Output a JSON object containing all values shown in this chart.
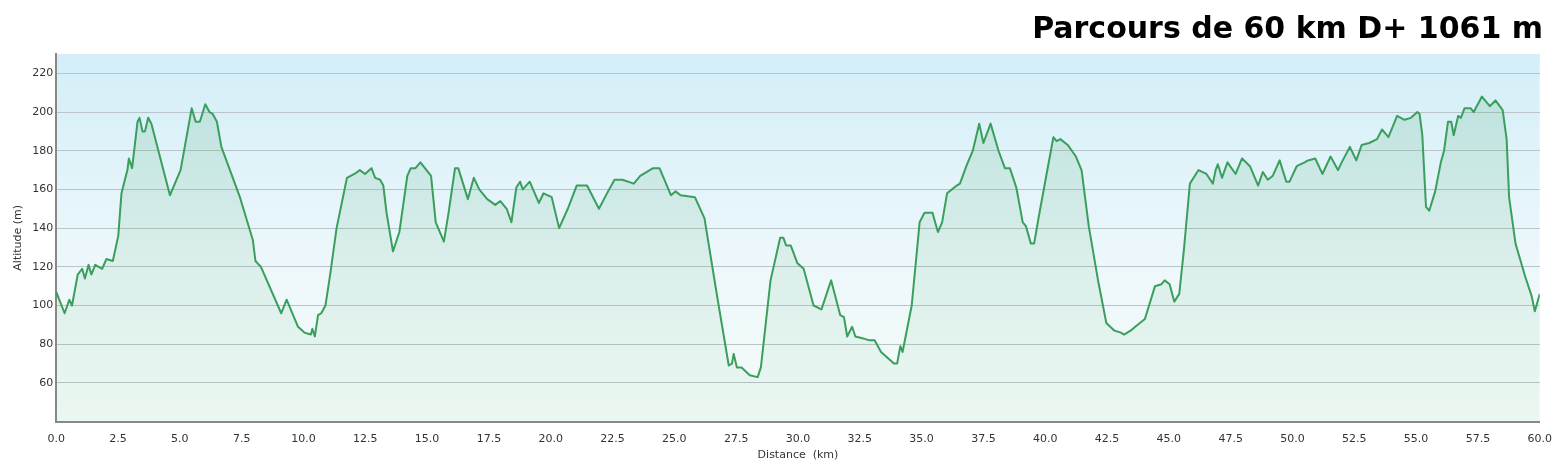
{
  "chart_data": {
    "type": "area",
    "title": "Parcours de 60 km D+ 1061 m",
    "xlabel": "Distance  (km)",
    "ylabel": "Altitude (m)",
    "xlim": [
      0,
      60
    ],
    "ylim": [
      40,
      230
    ],
    "xticks": [
      {
        "value": 0,
        "label": "0.0"
      },
      {
        "value": 2.5,
        "label": "2.5"
      },
      {
        "value": 5,
        "label": "5.0"
      },
      {
        "value": 7.5,
        "label": "7.5"
      },
      {
        "value": 10,
        "label": "10.0"
      },
      {
        "value": 12.5,
        "label": "12.5"
      },
      {
        "value": 15,
        "label": "15.0"
      },
      {
        "value": 17.5,
        "label": "17.5"
      },
      {
        "value": 20,
        "label": "20.0"
      },
      {
        "value": 22.5,
        "label": "22.5"
      },
      {
        "value": 25,
        "label": "25.0"
      },
      {
        "value": 27.5,
        "label": "27.5"
      },
      {
        "value": 30,
        "label": "30.0"
      },
      {
        "value": 32.5,
        "label": "32.5"
      },
      {
        "value": 35,
        "label": "35.0"
      },
      {
        "value": 37.5,
        "label": "37.5"
      },
      {
        "value": 40,
        "label": "40.0"
      },
      {
        "value": 42.5,
        "label": "42.5"
      },
      {
        "value": 45,
        "label": "45.0"
      },
      {
        "value": 47.5,
        "label": "47.5"
      },
      {
        "value": 50,
        "label": "50.0"
      },
      {
        "value": 52.5,
        "label": "52.5"
      },
      {
        "value": 55,
        "label": "55.0"
      },
      {
        "value": 57.5,
        "label": "57.5"
      },
      {
        "value": 60,
        "label": "60.0"
      }
    ],
    "yticks": [
      60,
      80,
      100,
      120,
      140,
      160,
      180,
      200,
      220
    ],
    "grid": "y",
    "legend": false,
    "series": [
      {
        "color": "#3a9e5c",
        "x": [
          0,
          0.34,
          0.53,
          0.64,
          0.87,
          1.05,
          1.16,
          1.31,
          1.42,
          1.58,
          1.86,
          2.03,
          2.29,
          2.51,
          2.64,
          2.88,
          2.94,
          3.07,
          3.29,
          3.37,
          3.49,
          3.59,
          3.72,
          3.85,
          4.6,
          5.03,
          5.48,
          5.64,
          5.81,
          6.03,
          6.2,
          6.33,
          6.5,
          6.68,
          7.43,
          7.95,
          8.06,
          8.28,
          9.1,
          9.32,
          9.78,
          10.04,
          10.3,
          10.36,
          10.46,
          10.59,
          10.72,
          10.89,
          11.08,
          11.34,
          11.76,
          12.06,
          12.28,
          12.49,
          12.75,
          12.9,
          13.1,
          13.23,
          13.36,
          13.62,
          13.88,
          14.2,
          14.34,
          14.53,
          14.73,
          15.16,
          15.35,
          15.68,
          15.87,
          16.13,
          16.26,
          16.65,
          16.89,
          17.11,
          17.43,
          17.76,
          17.96,
          18.22,
          18.41,
          18.61,
          18.76,
          18.87,
          19.15,
          19.52,
          19.71,
          20.04,
          20.34,
          20.69,
          21.05,
          21.47,
          21.95,
          22.32,
          22.58,
          22.9,
          23.36,
          23.62,
          24.14,
          24.4,
          24.86,
          25.05,
          25.25,
          25.83,
          26.22,
          26.74,
          27.2,
          27.33,
          27.4,
          27.53,
          27.72,
          28.05,
          28.37,
          28.5,
          28.89,
          29.28,
          29.41,
          29.52,
          29.71,
          29.97,
          30.23,
          30.63,
          30.95,
          31.34,
          31.71,
          31.86,
          31.99,
          32.19,
          32.32,
          32.64,
          32.88,
          33.1,
          33.36,
          33.62,
          33.88,
          34.01,
          34.14,
          34.23,
          34.6,
          34.92,
          35.12,
          35.44,
          35.66,
          35.83,
          36.03,
          36.22,
          36.42,
          36.55,
          36.81,
          37.07,
          37.33,
          37.5,
          37.79,
          38.11,
          38.37,
          38.57,
          38.83,
          39.09,
          39.22,
          39.42,
          39.55,
          39.74,
          40.07,
          40.33,
          40.46,
          40.61,
          40.91,
          41.24,
          41.47,
          41.76,
          42.15,
          42.47,
          42.8,
          43.06,
          43.19,
          43.45,
          43.64,
          44.03,
          44.44,
          44.7,
          44.83,
          45.03,
          45.22,
          45.42,
          45.61,
          45.85,
          46.2,
          46.52,
          46.78,
          46.89,
          46.98,
          47.15,
          47.37,
          47.7,
          47.96,
          48.28,
          48.61,
          48.8,
          49,
          49.2,
          49.48,
          49.75,
          49.88,
          50.17,
          50.49,
          50.63,
          50.92,
          51.21,
          51.54,
          51.84,
          51.99,
          52.32,
          52.58,
          52.8,
          53.1,
          53.42,
          53.62,
          53.88,
          54.23,
          54.53,
          54.79,
          55.05,
          55.14,
          55.25,
          55.4,
          55.53,
          55.77,
          56,
          56.13,
          56.29,
          56.42,
          56.52,
          56.7,
          56.81,
          56.96,
          57.2,
          57.33,
          57.66,
          57.98,
          58.21,
          58.5,
          58.66,
          58.76,
          59.02,
          59.41,
          59.67,
          59.8,
          60
        ],
        "values": [
          107,
          96,
          103,
          100,
          116,
          119,
          114,
          121,
          116,
          121,
          119,
          124,
          123,
          136,
          158,
          170,
          176,
          171,
          195,
          197,
          190,
          190,
          197,
          194,
          157,
          170,
          202,
          195,
          195,
          204,
          200,
          199,
          195,
          182,
          156,
          134,
          123,
          120,
          96,
          103,
          89,
          86,
          85,
          88,
          84,
          95,
          96,
          100,
          116,
          140,
          166,
          168,
          170,
          168,
          171,
          166,
          165,
          162,
          148,
          128,
          138,
          167,
          171,
          171,
          174,
          167,
          143,
          133,
          148,
          171,
          171,
          155,
          166,
          160,
          155,
          152,
          154,
          150,
          143,
          161,
          164,
          160,
          164,
          153,
          158,
          156,
          140,
          150,
          162,
          162,
          150,
          159,
          165,
          165,
          163,
          167,
          171,
          171,
          157,
          159,
          157,
          156,
          145,
          104,
          69,
          70,
          75,
          68,
          68,
          64,
          63,
          68,
          113,
          135,
          135,
          131,
          131,
          122,
          119,
          100,
          98,
          113,
          95,
          94,
          84,
          89,
          84,
          83,
          82,
          82,
          76,
          73,
          70,
          70,
          79,
          76,
          100,
          143,
          148,
          148,
          138,
          143,
          158,
          160,
          162,
          163,
          172,
          180,
          194,
          184,
          194,
          180,
          171,
          171,
          161,
          143,
          141,
          132,
          132,
          146,
          169,
          187,
          185,
          186,
          183,
          177,
          170,
          141,
          112,
          91,
          87,
          86,
          85,
          87,
          89,
          93,
          110,
          111,
          113,
          111,
          102,
          106,
          129,
          163,
          170,
          168,
          163,
          170,
          173,
          166,
          174,
          168,
          176,
          172,
          162,
          169,
          165,
          167,
          175,
          164,
          164,
          172,
          174,
          175,
          176,
          168,
          177,
          170,
          174,
          182,
          175,
          183,
          184,
          186,
          191,
          187,
          198,
          196,
          197,
          200,
          199,
          188,
          151,
          149,
          159,
          174,
          180,
          195,
          195,
          188,
          198,
          197,
          202,
          202,
          200,
          208,
          203,
          206,
          201,
          186,
          156,
          132,
          115,
          105,
          97,
          106
        ]
      }
    ]
  }
}
